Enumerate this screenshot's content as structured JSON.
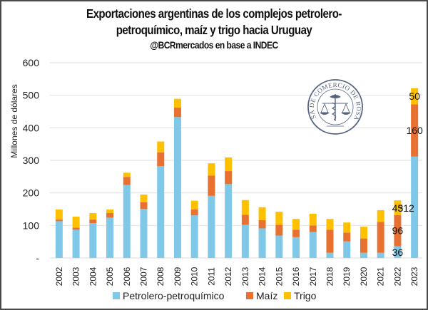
{
  "title_line1": "Exportaciones argentinas de los complejos petrolero-",
  "title_line2": "petroquímico, maíz y trigo hacia Uruguay",
  "subtitle": "@BCRmercados en base a INDEC",
  "watermark": {
    "text": "BOLSA DE COMERCIO DE ROSARIO",
    "icon": "scales-caduceus-seal-icon"
  },
  "chart_data": {
    "type": "bar",
    "stacked": true,
    "title": "Exportaciones argentinas de los complejos petrolero-petroquímico, maíz y trigo hacia Uruguay",
    "subtitle": "@BCRmercados en base a INDEC",
    "xlabel": "",
    "ylabel": "Millones de dólares",
    "ylim": [
      0,
      600
    ],
    "yticks": [
      0,
      100,
      200,
      300,
      400,
      500,
      600
    ],
    "ytick_labels": [
      "-",
      "100",
      "200",
      "300",
      "400",
      "500",
      "600"
    ],
    "grid": true,
    "legend_position": "bottom",
    "categories": [
      "2002",
      "2003",
      "2004",
      "2005",
      "2006",
      "2007",
      "2008",
      "2009",
      "2010",
      "2011",
      "2012",
      "2013",
      "2014",
      "2015",
      "2016",
      "2017",
      "2018",
      "2019",
      "2020",
      "2021",
      "2022",
      "2023"
    ],
    "series": [
      {
        "name": "Petrolero-petroquímico",
        "color": "#7fc8e8",
        "values": [
          113,
          87,
          107,
          124,
          224,
          151,
          282,
          433,
          131,
          191,
          227,
          102,
          91,
          69,
          64,
          80,
          16,
          51,
          16,
          16,
          36,
          312
        ]
      },
      {
        "name": "Maíz",
        "color": "#e87030",
        "values": [
          5,
          6,
          11,
          14,
          25,
          20,
          42,
          29,
          18,
          62,
          40,
          31,
          25,
          33,
          23,
          20,
          71,
          27,
          44,
          95,
          96,
          160
        ]
      },
      {
        "name": "Trigo",
        "color": "#ffc000",
        "values": [
          31,
          34,
          20,
          11,
          13,
          24,
          34,
          27,
          27,
          38,
          42,
          45,
          40,
          40,
          33,
          36,
          33,
          31,
          36,
          36,
          45,
          50
        ]
      }
    ],
    "data_labels": [
      {
        "category": "2022",
        "series": "Petrolero-petroquímico",
        "text": "36"
      },
      {
        "category": "2022",
        "series": "Maíz",
        "text": "96"
      },
      {
        "category": "2022",
        "series": "Trigo",
        "text": "45"
      },
      {
        "category": "2023",
        "series": "Petrolero-petroquímico",
        "text": "312"
      },
      {
        "category": "2023",
        "series": "Maíz",
        "text": "160"
      },
      {
        "category": "2023",
        "series": "Trigo",
        "text": "50"
      }
    ]
  }
}
